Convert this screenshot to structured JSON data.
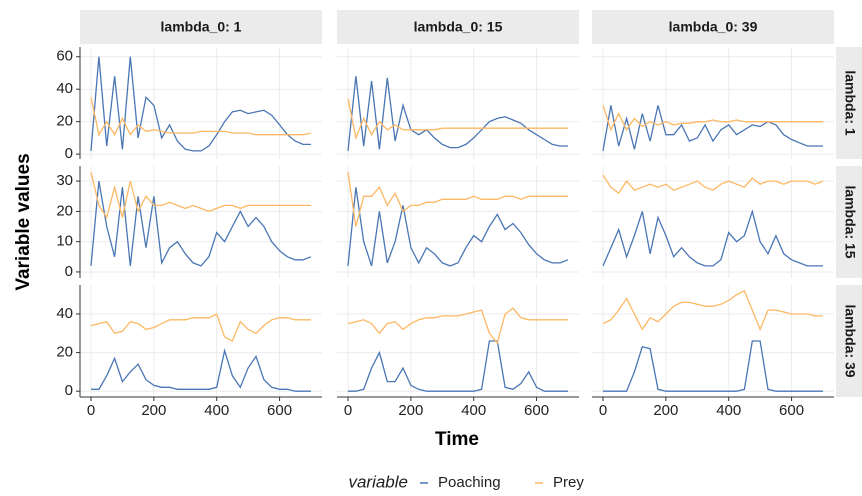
{
  "figure": {
    "y_label": "Variable values",
    "x_label": "Time",
    "legend_title": "variable",
    "facets": {
      "columns": [
        "lambda_0: 1",
        "lambda_0: 15",
        "lambda_0: 39"
      ],
      "rows": [
        "lambda: 1",
        "lambda: 15",
        "lambda: 39"
      ]
    }
  },
  "chart_data": [
    {
      "type": "line",
      "x": [
        0,
        25,
        50,
        75,
        100,
        125,
        150,
        175,
        200,
        225,
        250,
        275,
        300,
        325,
        350,
        375,
        400,
        425,
        450,
        475,
        500,
        525,
        550,
        575,
        600,
        625,
        650,
        675,
        700
      ],
      "xlim": [
        -35,
        735
      ],
      "xticks": [
        0,
        200,
        400,
        600
      ],
      "ylim": [
        -3,
        66
      ],
      "yticks": [
        0,
        20,
        40,
        60
      ],
      "series": [
        {
          "name": "Poaching",
          "color": "#4a76b5",
          "values": [
            2,
            60,
            5,
            48,
            3,
            60,
            10,
            35,
            30,
            10,
            18,
            8,
            3,
            2,
            2,
            5,
            12,
            20,
            26,
            27,
            25,
            26,
            27,
            24,
            18,
            12,
            8,
            6,
            6
          ]
        },
        {
          "name": "Prey",
          "color": "#fdb863",
          "values": [
            35,
            12,
            20,
            12,
            22,
            12,
            18,
            14,
            15,
            14,
            13,
            13,
            13,
            13,
            14,
            14,
            14,
            14,
            13,
            13,
            13,
            12,
            12,
            12,
            12,
            12,
            12,
            12,
            13
          ]
        }
      ]
    },
    {
      "type": "line",
      "x": [
        0,
        25,
        50,
        75,
        100,
        125,
        150,
        175,
        200,
        225,
        250,
        275,
        300,
        325,
        350,
        375,
        400,
        425,
        450,
        475,
        500,
        525,
        550,
        575,
        600,
        625,
        650,
        675,
        700
      ],
      "xlim": [
        -35,
        735
      ],
      "xticks": [
        0,
        200,
        400,
        600
      ],
      "ylim": [
        -3,
        66
      ],
      "yticks": [
        0,
        20,
        40,
        60
      ],
      "series": [
        {
          "name": "Poaching",
          "color": "#4a76b5",
          "values": [
            2,
            48,
            5,
            45,
            3,
            47,
            8,
            30,
            15,
            12,
            15,
            10,
            6,
            4,
            4,
            6,
            10,
            15,
            20,
            22,
            23,
            21,
            19,
            15,
            12,
            9,
            6,
            5,
            5
          ]
        },
        {
          "name": "Prey",
          "color": "#fdb863",
          "values": [
            34,
            10,
            22,
            12,
            20,
            15,
            18,
            15,
            15,
            15,
            15,
            15,
            16,
            16,
            16,
            16,
            16,
            16,
            16,
            16,
            16,
            16,
            16,
            16,
            16,
            16,
            16,
            16,
            16
          ]
        }
      ]
    },
    {
      "type": "line",
      "x": [
        0,
        25,
        50,
        75,
        100,
        125,
        150,
        175,
        200,
        225,
        250,
        275,
        300,
        325,
        350,
        375,
        400,
        425,
        450,
        475,
        500,
        525,
        550,
        575,
        600,
        625,
        650,
        675,
        700
      ],
      "xlim": [
        -35,
        735
      ],
      "xticks": [
        0,
        200,
        400,
        600
      ],
      "ylim": [
        -3,
        66
      ],
      "yticks": [
        0,
        20,
        40,
        60
      ],
      "series": [
        {
          "name": "Poaching",
          "color": "#4a76b5",
          "values": [
            2,
            30,
            5,
            22,
            3,
            25,
            8,
            30,
            12,
            12,
            18,
            8,
            10,
            18,
            8,
            15,
            18,
            12,
            15,
            18,
            17,
            20,
            18,
            12,
            9,
            7,
            5,
            5,
            5
          ]
        },
        {
          "name": "Prey",
          "color": "#fdb863",
          "values": [
            30,
            15,
            25,
            15,
            22,
            17,
            20,
            18,
            20,
            18,
            19,
            19,
            20,
            20,
            21,
            20,
            20,
            21,
            20,
            20,
            20,
            20,
            20,
            20,
            20,
            20,
            20,
            20,
            20
          ]
        }
      ]
    },
    {
      "type": "line",
      "x": [
        0,
        25,
        50,
        75,
        100,
        125,
        150,
        175,
        200,
        225,
        250,
        275,
        300,
        325,
        350,
        375,
        400,
        425,
        450,
        475,
        500,
        525,
        550,
        575,
        600,
        625,
        650,
        675,
        700
      ],
      "xlim": [
        -35,
        735
      ],
      "xticks": [
        0,
        200,
        400,
        600
      ],
      "ylim": [
        -2,
        35
      ],
      "yticks": [
        0,
        10,
        20,
        30
      ],
      "series": [
        {
          "name": "Poaching",
          "color": "#4a76b5",
          "values": [
            2,
            30,
            15,
            5,
            28,
            2,
            25,
            8,
            25,
            3,
            8,
            10,
            6,
            3,
            2,
            5,
            13,
            10,
            15,
            20,
            15,
            18,
            15,
            10,
            7,
            5,
            4,
            4,
            5
          ]
        },
        {
          "name": "Prey",
          "color": "#fdb863",
          "values": [
            33,
            22,
            18,
            28,
            18,
            30,
            20,
            25,
            22,
            22,
            23,
            22,
            21,
            22,
            21,
            20,
            21,
            22,
            22,
            21,
            22,
            22,
            22,
            22,
            22,
            22,
            22,
            22,
            22
          ]
        }
      ]
    },
    {
      "type": "line",
      "x": [
        0,
        25,
        50,
        75,
        100,
        125,
        150,
        175,
        200,
        225,
        250,
        275,
        300,
        325,
        350,
        375,
        400,
        425,
        450,
        475,
        500,
        525,
        550,
        575,
        600,
        625,
        650,
        675,
        700
      ],
      "xlim": [
        -35,
        735
      ],
      "xticks": [
        0,
        200,
        400,
        600
      ],
      "ylim": [
        -2,
        35
      ],
      "yticks": [
        0,
        10,
        20,
        30
      ],
      "series": [
        {
          "name": "Poaching",
          "color": "#4a76b5",
          "values": [
            2,
            28,
            10,
            2,
            20,
            3,
            10,
            22,
            8,
            3,
            8,
            6,
            3,
            2,
            3,
            8,
            12,
            10,
            15,
            19,
            14,
            16,
            13,
            9,
            6,
            4,
            3,
            3,
            4
          ]
        },
        {
          "name": "Prey",
          "color": "#fdb863",
          "values": [
            33,
            15,
            25,
            25,
            28,
            22,
            26,
            20,
            22,
            22,
            23,
            23,
            24,
            24,
            24,
            24,
            25,
            24,
            24,
            24,
            25,
            25,
            24,
            25,
            25,
            25,
            25,
            25,
            25
          ]
        }
      ]
    },
    {
      "type": "line",
      "x": [
        0,
        25,
        50,
        75,
        100,
        125,
        150,
        175,
        200,
        225,
        250,
        275,
        300,
        325,
        350,
        375,
        400,
        425,
        450,
        475,
        500,
        525,
        550,
        575,
        600,
        625,
        650,
        675,
        700
      ],
      "xlim": [
        -35,
        735
      ],
      "xticks": [
        0,
        200,
        400,
        600
      ],
      "ylim": [
        -2,
        35
      ],
      "yticks": [
        0,
        10,
        20,
        30
      ],
      "series": [
        {
          "name": "Poaching",
          "color": "#4a76b5",
          "values": [
            2,
            8,
            14,
            5,
            12,
            20,
            6,
            18,
            12,
            5,
            8,
            5,
            3,
            2,
            2,
            4,
            13,
            10,
            12,
            20,
            10,
            6,
            12,
            6,
            4,
            3,
            2,
            2,
            2
          ]
        },
        {
          "name": "Prey",
          "color": "#fdb863",
          "values": [
            32,
            28,
            26,
            30,
            27,
            28,
            29,
            28,
            29,
            27,
            28,
            29,
            30,
            28,
            27,
            29,
            30,
            29,
            28,
            31,
            29,
            30,
            30,
            29,
            30,
            30,
            30,
            29,
            30
          ]
        }
      ]
    },
    {
      "type": "line",
      "x": [
        0,
        25,
        50,
        75,
        100,
        125,
        150,
        175,
        200,
        225,
        250,
        275,
        300,
        325,
        350,
        375,
        400,
        425,
        450,
        475,
        500,
        525,
        550,
        575,
        600,
        625,
        650,
        675,
        700
      ],
      "xlim": [
        -35,
        735
      ],
      "xticks": [
        0,
        200,
        400,
        600
      ],
      "ylim": [
        -3,
        55
      ],
      "yticks": [
        0,
        20,
        40
      ],
      "series": [
        {
          "name": "Poaching",
          "color": "#4a76b5",
          "values": [
            1,
            1,
            8,
            17,
            5,
            10,
            14,
            6,
            3,
            2,
            2,
            1,
            1,
            1,
            1,
            1,
            2,
            21,
            8,
            2,
            12,
            18,
            6,
            2,
            1,
            1,
            0,
            0,
            0
          ]
        },
        {
          "name": "Prey",
          "color": "#fdb863",
          "values": [
            34,
            35,
            36,
            30,
            31,
            36,
            35,
            32,
            33,
            35,
            37,
            37,
            37,
            38,
            38,
            38,
            40,
            28,
            26,
            36,
            32,
            30,
            34,
            37,
            38,
            38,
            37,
            37,
            37
          ]
        }
      ]
    },
    {
      "type": "line",
      "x": [
        0,
        25,
        50,
        75,
        100,
        125,
        150,
        175,
        200,
        225,
        250,
        275,
        300,
        325,
        350,
        375,
        400,
        425,
        450,
        475,
        500,
        525,
        550,
        575,
        600,
        625,
        650,
        675,
        700
      ],
      "xlim": [
        -35,
        735
      ],
      "xticks": [
        0,
        200,
        400,
        600
      ],
      "ylim": [
        -3,
        55
      ],
      "yticks": [
        0,
        20,
        40
      ],
      "series": [
        {
          "name": "Poaching",
          "color": "#4a76b5",
          "values": [
            0,
            0,
            1,
            12,
            20,
            5,
            5,
            12,
            3,
            1,
            0,
            0,
            0,
            0,
            0,
            0,
            0,
            1,
            26,
            26,
            2,
            1,
            4,
            10,
            2,
            0,
            0,
            0,
            0
          ]
        },
        {
          "name": "Prey",
          "color": "#fdb863",
          "values": [
            35,
            36,
            37,
            35,
            30,
            35,
            36,
            32,
            35,
            37,
            38,
            38,
            39,
            39,
            39,
            40,
            41,
            42,
            30,
            25,
            40,
            43,
            38,
            37,
            37,
            37,
            37,
            37,
            37
          ]
        }
      ]
    },
    {
      "type": "line",
      "x": [
        0,
        25,
        50,
        75,
        100,
        125,
        150,
        175,
        200,
        225,
        250,
        275,
        300,
        325,
        350,
        375,
        400,
        425,
        450,
        475,
        500,
        525,
        550,
        575,
        600,
        625,
        650,
        675,
        700
      ],
      "xlim": [
        -35,
        735
      ],
      "xticks": [
        0,
        200,
        400,
        600
      ],
      "ylim": [
        -3,
        55
      ],
      "yticks": [
        0,
        20,
        40
      ],
      "series": [
        {
          "name": "Poaching",
          "color": "#4a76b5",
          "values": [
            0,
            0,
            0,
            0,
            10,
            23,
            22,
            1,
            0,
            0,
            0,
            0,
            0,
            0,
            0,
            0,
            0,
            0,
            1,
            26,
            26,
            1,
            0,
            0,
            0,
            0,
            0,
            0,
            0
          ]
        },
        {
          "name": "Prey",
          "color": "#fdb863",
          "values": [
            35,
            37,
            42,
            48,
            40,
            32,
            38,
            36,
            40,
            44,
            46,
            46,
            45,
            44,
            44,
            45,
            47,
            50,
            52,
            42,
            32,
            42,
            42,
            41,
            40,
            40,
            40,
            39,
            39
          ]
        }
      ]
    }
  ]
}
